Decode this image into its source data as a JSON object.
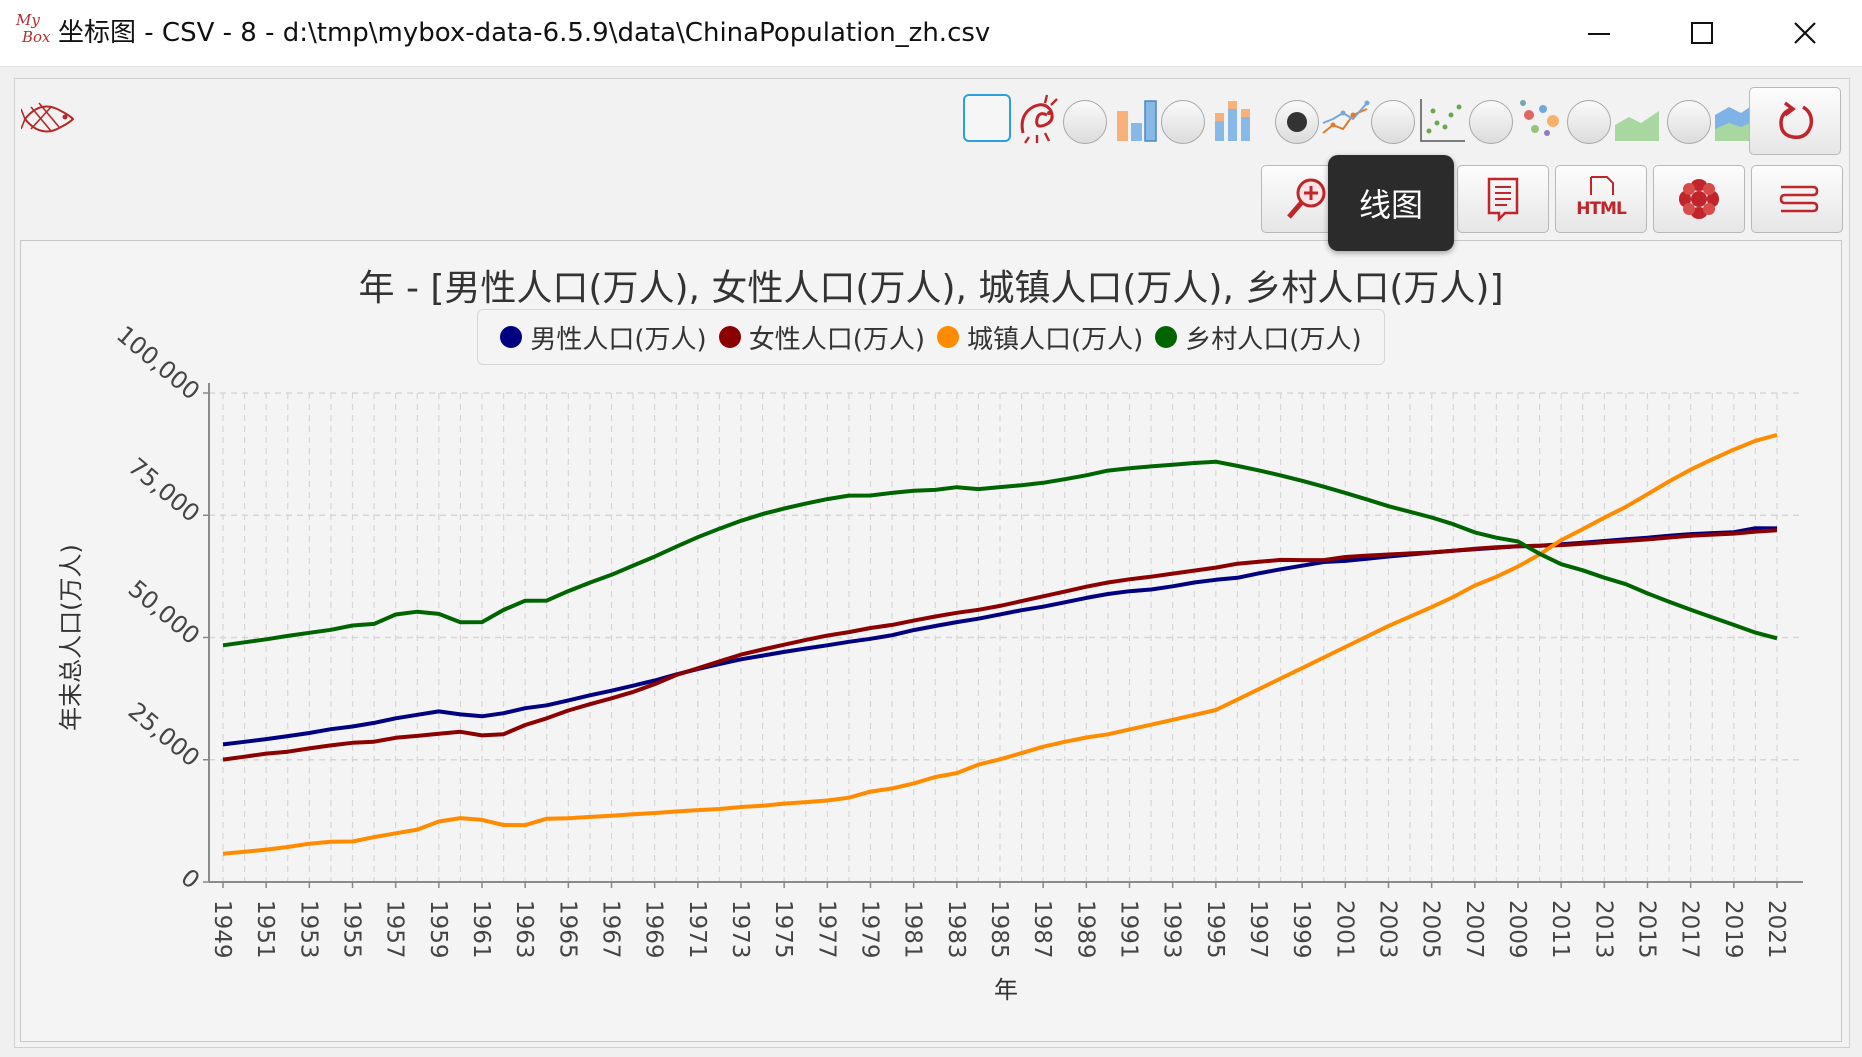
{
  "window": {
    "title": "坐标图 - CSV - 8 - d:\\tmp\\mybox-data-6.5.9\\data\\ChinaPopulation_zh.csv",
    "logo_top": "My",
    "logo_bottom": "Box",
    "minimize_icon": "minimize-icon",
    "maximize_icon": "maximize-icon",
    "close_icon": "close-icon"
  },
  "toolbar": {
    "chart_types": [
      {
        "name": "bar",
        "selected": false
      },
      {
        "name": "stacked-bar",
        "selected": false
      },
      {
        "name": "line",
        "selected": true
      },
      {
        "name": "scatter",
        "selected": false
      },
      {
        "name": "bubble",
        "selected": false
      },
      {
        "name": "area",
        "selected": false
      },
      {
        "name": "stacked-area",
        "selected": false
      }
    ],
    "buttons": [
      "zoom",
      "image",
      "data-list",
      "html",
      "menu",
      "options"
    ],
    "html_label": "HTML",
    "refresh_icon": "refresh-icon"
  },
  "tooltip": {
    "text": "线图"
  },
  "colors": {
    "male": "#000080",
    "female": "#8b0000",
    "urban": "#ff8c00",
    "rural": "#006400",
    "grid": "#d4d4d4",
    "accent": "#2aa0e0"
  },
  "chart_data": {
    "type": "line",
    "title": "年 - [男性人口(万人), 女性人口(万人), 城镇人口(万人), 乡村人口(万人)]",
    "xlabel": "年",
    "ylabel": "年末总人口(万人)",
    "ylim": [
      0,
      100000
    ],
    "yticks": [
      "0",
      "25,000",
      "50,000",
      "75,000",
      "100,000"
    ],
    "legend_position": "top",
    "grid": true,
    "x": [
      1949,
      1950,
      1951,
      1952,
      1953,
      1954,
      1955,
      1956,
      1957,
      1958,
      1959,
      1960,
      1961,
      1962,
      1963,
      1964,
      1965,
      1966,
      1967,
      1968,
      1969,
      1970,
      1971,
      1972,
      1973,
      1974,
      1975,
      1976,
      1977,
      1978,
      1979,
      1980,
      1981,
      1982,
      1983,
      1984,
      1985,
      1986,
      1987,
      1988,
      1989,
      1990,
      1991,
      1992,
      1993,
      1994,
      1995,
      1996,
      1997,
      1998,
      1999,
      2000,
      2001,
      2002,
      2003,
      2004,
      2005,
      2006,
      2007,
      2008,
      2009,
      2010,
      2011,
      2012,
      2013,
      2014,
      2015,
      2016,
      2017,
      2018,
      2019,
      2020,
      2021
    ],
    "xtick_labels": [
      "1949",
      "1951",
      "1953",
      "1955",
      "1957",
      "1959",
      "1961",
      "1963",
      "1965",
      "1967",
      "1969",
      "1971",
      "1973",
      "1975",
      "1977",
      "1979",
      "1981",
      "1983",
      "1985",
      "1987",
      "1989",
      "1991",
      "1993",
      "1995",
      "1997",
      "1999",
      "2001",
      "2003",
      "2005",
      "2007",
      "2009",
      "2011",
      "2013",
      "2015",
      "2017",
      "2019",
      "2021"
    ],
    "series": [
      {
        "name": "男性人口(万人)",
        "color": "#000080",
        "values": [
          28145,
          28669,
          29231,
          29833,
          30468,
          31242,
          31809,
          32536,
          33469,
          34195,
          34890,
          34283,
          33880,
          34517,
          35533,
          36142,
          37128,
          38189,
          39115,
          40136,
          41203,
          42462,
          43554,
          44587,
          45539,
          46302,
          47061,
          47751,
          48410,
          49112,
          49744,
          50470,
          51519,
          52352,
          53153,
          53848,
          54725,
          55581,
          56290,
          57201,
          58099,
          58904,
          59466,
          59811,
          60472,
          61246,
          61808,
          62200,
          63131,
          63940,
          64692,
          65437,
          65672,
          66115,
          66556,
          66976,
          67375,
          67728,
          68048,
          68357,
          68647,
          68748,
          69068,
          69395,
          69728,
          70079,
          70414,
          70815,
          71137,
          71351,
          71527,
          72357,
          72311
        ]
      },
      {
        "name": "女性人口(万人)",
        "color": "#8b0000",
        "values": [
          25022,
          25627,
          26251,
          26649,
          27322,
          27944,
          28457,
          28692,
          29494,
          29871,
          30314,
          30707,
          29979,
          30222,
          32101,
          33480,
          35080,
          36353,
          37560,
          38883,
          40468,
          42331,
          43702,
          45116,
          46513,
          47556,
          48524,
          49516,
          50394,
          51110,
          51948,
          52571,
          53453,
          54302,
          55061,
          55659,
          56452,
          57443,
          58417,
          59395,
          60384,
          61241,
          61893,
          62430,
          63069,
          63689,
          64301,
          65085,
          65487,
          65869,
          65838,
          65837,
          66454,
          66740,
          66966,
          67195,
          67381,
          67728,
          68165,
          68454,
          68652,
          68748,
          68901,
          69185,
          69475,
          69753,
          70064,
          70445,
          70804,
          71033,
          71247,
          71653,
          71949
        ]
      },
      {
        "name": "城镇人口(万人)",
        "color": "#ff8c00",
        "values": [
          5765,
          6169,
          6632,
          7163,
          7826,
          8249,
          8285,
          9185,
          9949,
          10721,
          12371,
          13073,
          12707,
          11659,
          11646,
          12950,
          13045,
          13313,
          13548,
          13838,
          14117,
          14424,
          14711,
          14935,
          15345,
          15595,
          16030,
          16341,
          16669,
          17245,
          18495,
          19140,
          20171,
          21480,
          22274,
          24017,
          25094,
          26366,
          27674,
          28661,
          29540,
          30195,
          31203,
          32175,
          33173,
          34169,
          35174,
          37304,
          39449,
          41608,
          43748,
          45906,
          48064,
          50212,
          52376,
          54283,
          56212,
          58288,
          60633,
          62403,
          64512,
          66978,
          69927,
          72175,
          74502,
          76738,
          79302,
          81924,
          84343,
          86433,
          88426,
          90220,
          91425
        ]
      },
      {
        "name": "乡村人口(万人)",
        "color": "#006400",
        "values": [
          48402,
          49027,
          49641,
          50319,
          50970,
          51578,
          52448,
          52776,
          54704,
          55273,
          54836,
          53134,
          53152,
          55636,
          57526,
          57549,
          59493,
          61229,
          62820,
          64704,
          66554,
          68568,
          70520,
          72242,
          73866,
          75264,
          76390,
          77376,
          78305,
          79014,
          79047,
          79565,
          80002,
          80174,
          80734,
          80340,
          80757,
          81141,
          81626,
          82365,
          83164,
          84138,
          84620,
          84996,
          85344,
          85681,
          85947,
          85085,
          84177,
          83153,
          82038,
          80837,
          79563,
          78241,
          76851,
          75705,
          74544,
          73160,
          71496,
          70399,
          69623,
          67113,
          64989,
          63747,
          62224,
          60908,
          59024,
          57308,
          55668,
          54108,
          52582,
          50992,
          49835
        ]
      }
    ]
  }
}
